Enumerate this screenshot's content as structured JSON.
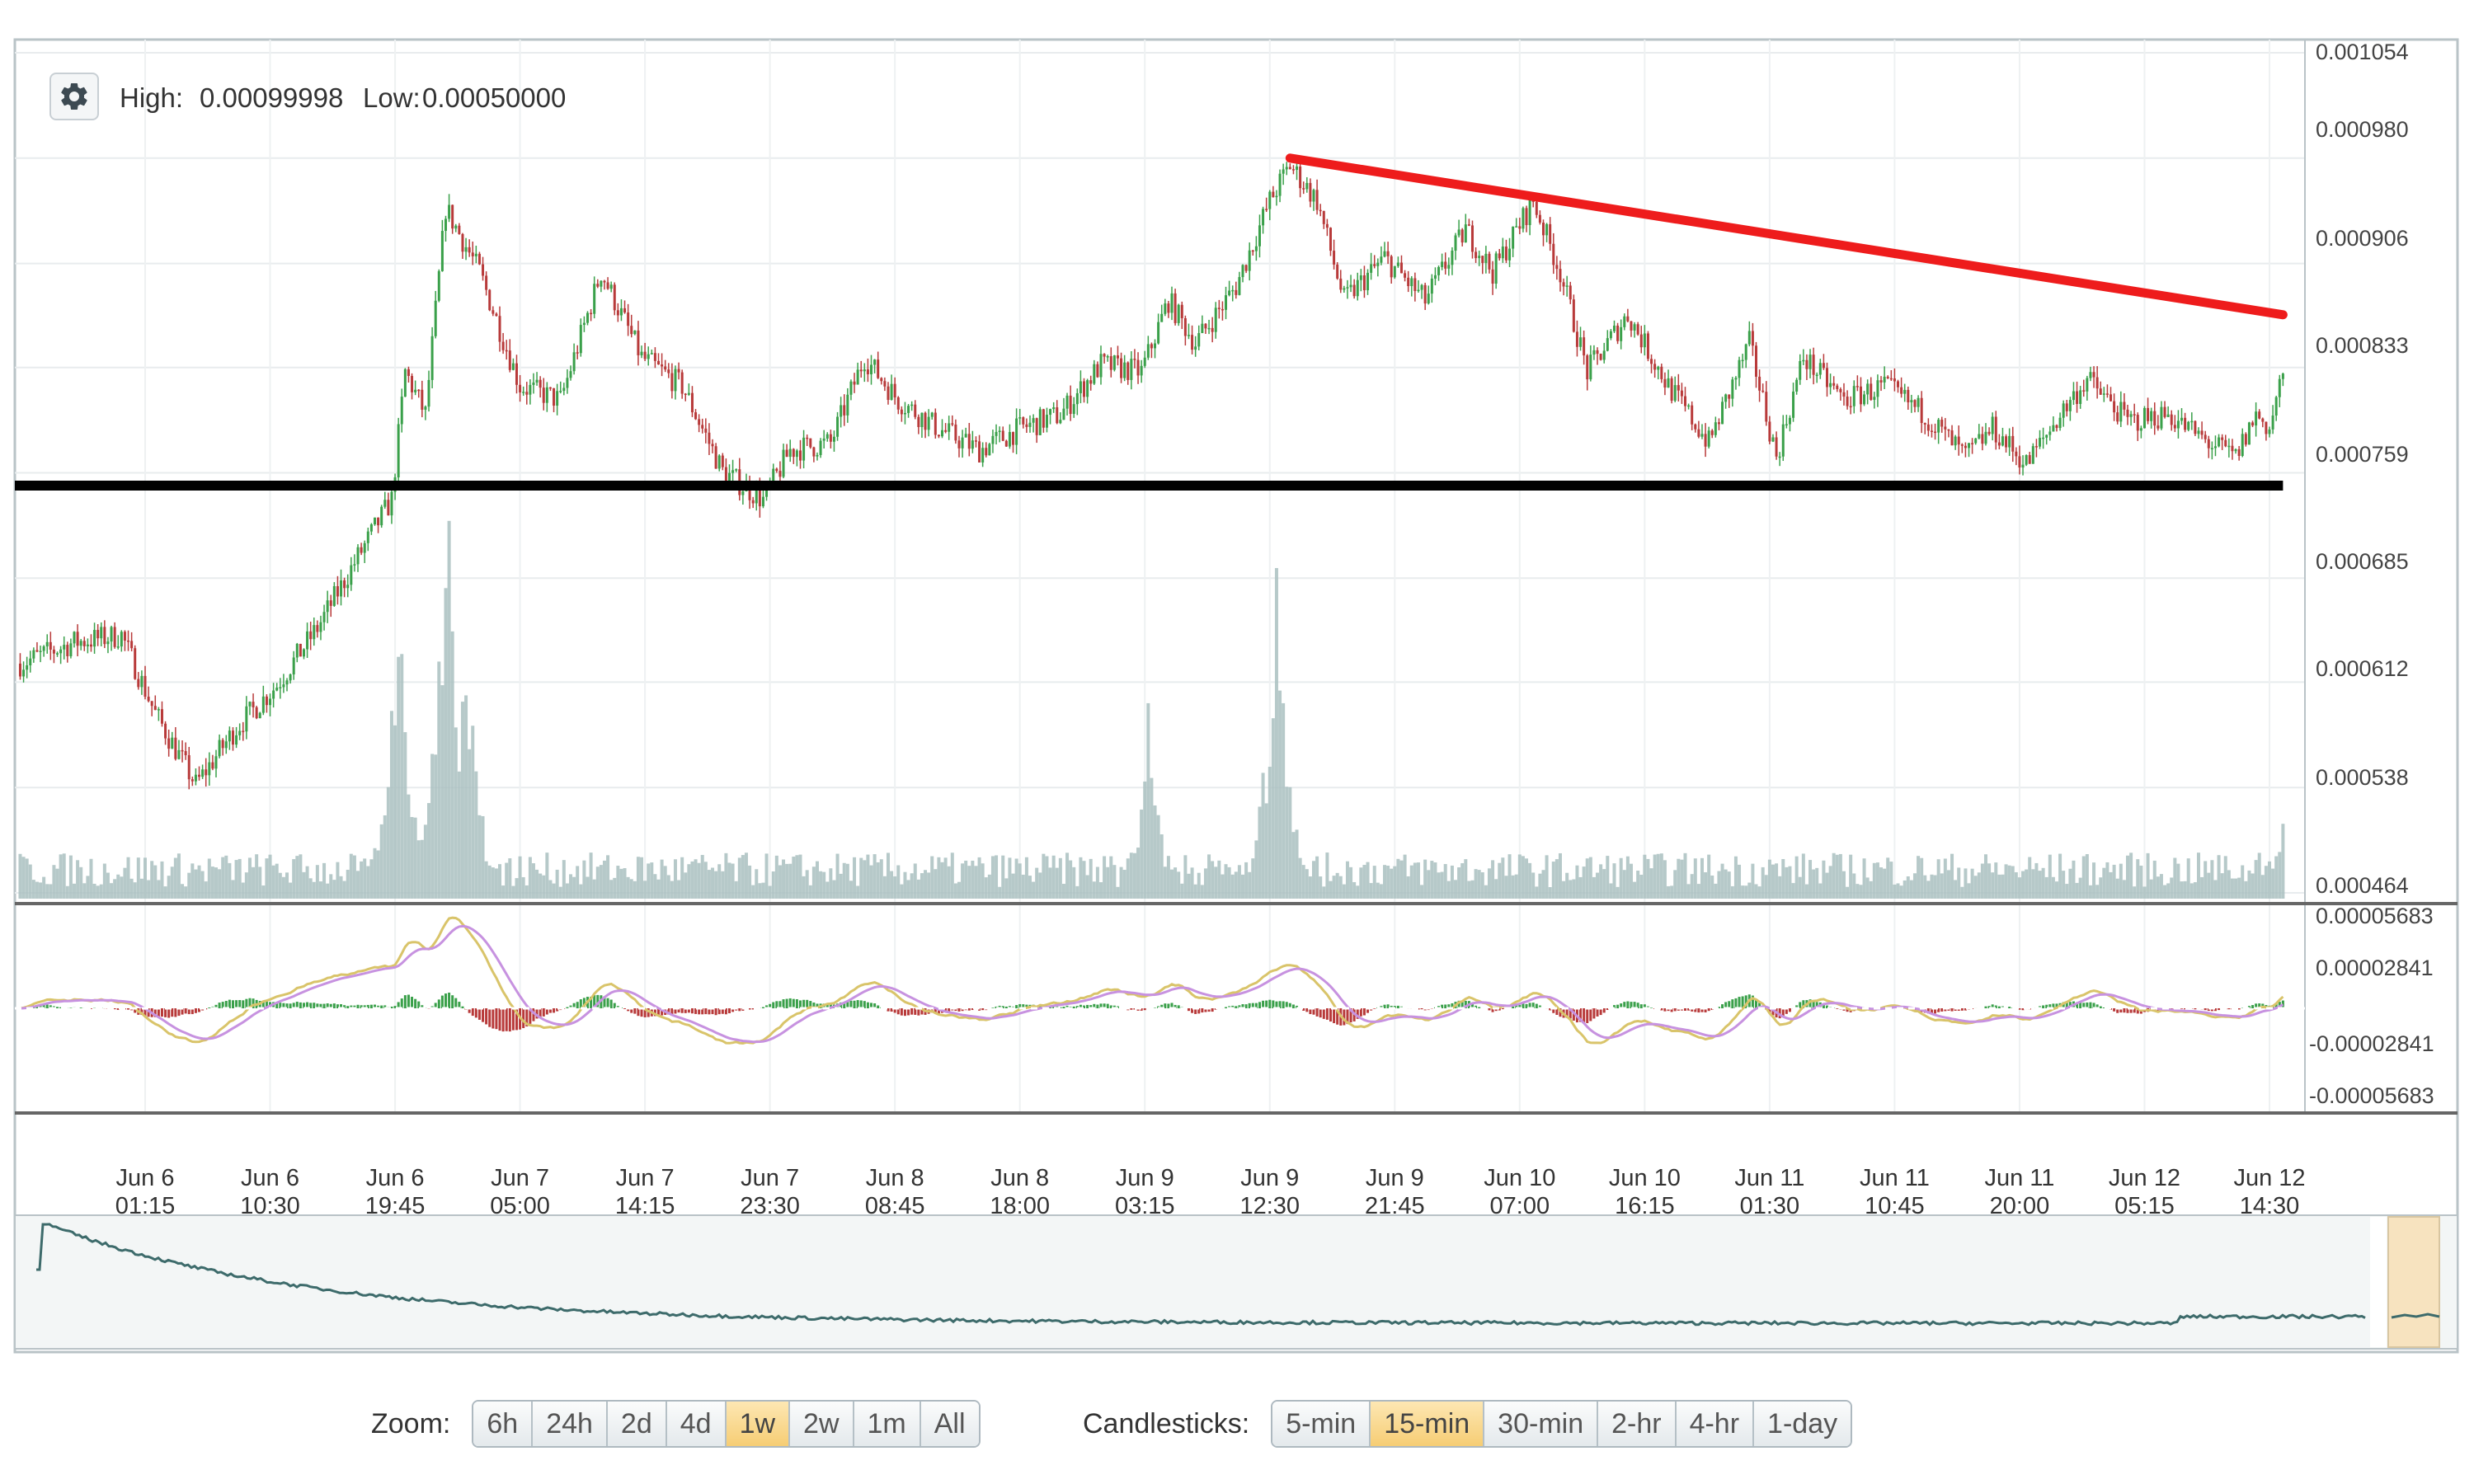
{
  "info": {
    "high_label": "High:",
    "high_value": "0.00099998",
    "low_label": "Low:",
    "low_value": "0.00050000"
  },
  "settings_icon": "gear-icon",
  "zoom": {
    "label": "Zoom:",
    "options": [
      "6h",
      "24h",
      "2d",
      "4d",
      "1w",
      "2w",
      "1m",
      "All"
    ],
    "selected": "1w"
  },
  "candlesticks": {
    "label": "Candlesticks:",
    "options": [
      "5-min",
      "15-min",
      "30-min",
      "2-hr",
      "4-hr",
      "1-day"
    ],
    "selected": "15-min"
  },
  "colors": {
    "up": "#3aa04a",
    "down": "#b83a3a",
    "volume": "#a9bfc0",
    "resistance_line": "#ee1c1c",
    "support_line": "#000000",
    "macd_line": "#d9c46a",
    "signal_line": "#c792e0",
    "nav_line": "#3d6b6b",
    "active_button": "#f6cd74"
  },
  "chart_data": {
    "type": "candlestick",
    "price_axis": {
      "ticks": [
        "0.001054",
        "0.000980",
        "0.000906",
        "0.000833",
        "0.000759",
        "0.000685",
        "0.000612",
        "0.000538",
        "0.000464"
      ],
      "range": [
        0.000464,
        0.001054
      ]
    },
    "macd_axis": {
      "ticks": [
        "0.00005683",
        "0.00002841",
        "-0.00002841",
        "-0.00005683"
      ],
      "range": [
        -5.683e-05,
        5.683e-05
      ]
    },
    "x_ticks": [
      {
        "day": "Jun 6",
        "time": "01:15"
      },
      {
        "day": "Jun 6",
        "time": "10:30"
      },
      {
        "day": "Jun 6",
        "time": "19:45"
      },
      {
        "day": "Jun 7",
        "time": "05:00"
      },
      {
        "day": "Jun 7",
        "time": "14:15"
      },
      {
        "day": "Jun 7",
        "time": "23:30"
      },
      {
        "day": "Jun 8",
        "time": "08:45"
      },
      {
        "day": "Jun 8",
        "time": "18:00"
      },
      {
        "day": "Jun 9",
        "time": "03:15"
      },
      {
        "day": "Jun 9",
        "time": "12:30"
      },
      {
        "day": "Jun 9",
        "time": "21:45"
      },
      {
        "day": "Jun 10",
        "time": "07:00"
      },
      {
        "day": "Jun 10",
        "time": "16:15"
      },
      {
        "day": "Jun 11",
        "time": "01:30"
      },
      {
        "day": "Jun 11",
        "time": "10:45"
      },
      {
        "day": "Jun 11",
        "time": "20:00"
      },
      {
        "day": "Jun 12",
        "time": "05:15"
      },
      {
        "day": "Jun 12",
        "time": "14:30"
      }
    ],
    "price_path": [
      {
        "t": "Jun 5 16:00",
        "price": 0.000625
      },
      {
        "t": "Jun 5 20:00",
        "price": 0.00064
      },
      {
        "t": "Jun 5 23:30",
        "price": 0.000645
      },
      {
        "t": "Jun 6 02:00",
        "price": 0.00059
      },
      {
        "t": "Jun 6 05:00",
        "price": 0.00054
      },
      {
        "t": "Jun 6 08:00",
        "price": 0.00058
      },
      {
        "t": "Jun 6 11:00",
        "price": 0.00061
      },
      {
        "t": "Jun 6 14:00",
        "price": 0.00065
      },
      {
        "t": "Jun 6 17:00",
        "price": 0.0007
      },
      {
        "t": "Jun 6 19:30",
        "price": 0.00074
      },
      {
        "t": "Jun 6 20:30",
        "price": 0.00083
      },
      {
        "t": "Jun 6 22:00",
        "price": 0.0008
      },
      {
        "t": "Jun 6 23:30",
        "price": 0.000945
      },
      {
        "t": "Jun 7 02:00",
        "price": 0.0009
      },
      {
        "t": "Jun 7 05:00",
        "price": 0.00082
      },
      {
        "t": "Jun 7 08:00",
        "price": 0.00081
      },
      {
        "t": "Jun 7 11:00",
        "price": 0.0009
      },
      {
        "t": "Jun 7 14:00",
        "price": 0.00084
      },
      {
        "t": "Jun 7 17:00",
        "price": 0.00082
      },
      {
        "t": "Jun 7 20:00",
        "price": 0.00076
      },
      {
        "t": "Jun 7 23:00",
        "price": 0.00074
      },
      {
        "t": "Jun 8 01:00",
        "price": 0.000775
      },
      {
        "t": "Jun 8 04:00",
        "price": 0.00078
      },
      {
        "t": "Jun 8 06:30",
        "price": 0.00084
      },
      {
        "t": "Jun 8 09:00",
        "price": 0.00081
      },
      {
        "t": "Jun 8 12:00",
        "price": 0.00079
      },
      {
        "t": "Jun 8 15:00",
        "price": 0.000775
      },
      {
        "t": "Jun 8 18:00",
        "price": 0.00079
      },
      {
        "t": "Jun 8 21:00",
        "price": 0.0008
      },
      {
        "t": "Jun 9 00:00",
        "price": 0.000835
      },
      {
        "t": "Jun 9 03:00",
        "price": 0.00083
      },
      {
        "t": "Jun 9 05:00",
        "price": 0.00088
      },
      {
        "t": "Jun 9 07:00",
        "price": 0.00085
      },
      {
        "t": "Jun 9 10:00",
        "price": 0.00089
      },
      {
        "t": "Jun 9 12:30",
        "price": 0.00095
      },
      {
        "t": "Jun 9 14:00",
        "price": 0.000975
      },
      {
        "t": "Jun 9 16:00",
        "price": 0.00095
      },
      {
        "t": "Jun 9 18:00",
        "price": 0.00088
      },
      {
        "t": "Jun 9 21:00",
        "price": 0.00091
      },
      {
        "t": "Jun 10 00:00",
        "price": 0.00088
      },
      {
        "t": "Jun 10 03:00",
        "price": 0.00093
      },
      {
        "t": "Jun 10 05:00",
        "price": 0.0009
      },
      {
        "t": "Jun 10 08:00",
        "price": 0.00095
      },
      {
        "t": "Jun 10 10:00",
        "price": 0.0009
      },
      {
        "t": "Jun 10 12:00",
        "price": 0.00083
      },
      {
        "t": "Jun 10 15:00",
        "price": 0.00087
      },
      {
        "t": "Jun 10 18:00",
        "price": 0.00082
      },
      {
        "t": "Jun 10 21:00",
        "price": 0.00078
      },
      {
        "t": "Jun 11 00:00",
        "price": 0.00085
      },
      {
        "t": "Jun 11 02:00",
        "price": 0.00077
      },
      {
        "t": "Jun 11 04:00",
        "price": 0.00084
      },
      {
        "t": "Jun 11 07:00",
        "price": 0.00081
      },
      {
        "t": "Jun 11 10:00",
        "price": 0.00082
      },
      {
        "t": "Jun 11 13:00",
        "price": 0.0008
      },
      {
        "t": "Jun 11 16:00",
        "price": 0.00077
      },
      {
        "t": "Jun 11 18:00",
        "price": 0.00079
      },
      {
        "t": "Jun 11 20:30",
        "price": 0.000765
      },
      {
        "t": "Jun 11 23:00",
        "price": 0.0008
      },
      {
        "t": "Jun 12 01:00",
        "price": 0.000825
      },
      {
        "t": "Jun 12 04:00",
        "price": 0.000795
      },
      {
        "t": "Jun 12 07:00",
        "price": 0.0008
      },
      {
        "t": "Jun 12 10:00",
        "price": 0.00078
      },
      {
        "t": "Jun 12 12:00",
        "price": 0.00077
      },
      {
        "t": "Jun 12 13:30",
        "price": 0.0008
      },
      {
        "t": "Jun 12 14:30",
        "price": 0.00079
      },
      {
        "t": "Jun 12 15:30",
        "price": 0.00083
      }
    ],
    "volume_spikes": [
      {
        "t": "Jun 6 20:00",
        "level": 0.62
      },
      {
        "t": "Jun 6 23:30",
        "level": 0.85
      },
      {
        "t": "Jun 7 01:00",
        "level": 0.5
      },
      {
        "t": "Jun 9 03:30",
        "level": 0.34
      },
      {
        "t": "Jun 9 13:00",
        "level": 0.6
      },
      {
        "t": "Jun 12 15:30",
        "level": 0.16
      }
    ],
    "annotations": {
      "resistance_line": [
        {
          "t": "Jun 9 14:00",
          "price": 0.00098
        },
        {
          "t": "Jun 12 15:30",
          "price": 0.00087
        }
      ],
      "support_line": [
        {
          "t": "Jun 5 16:00",
          "price": 0.00075
        },
        {
          "t": "Jun 12 15:30",
          "price": 0.00075
        }
      ]
    }
  }
}
